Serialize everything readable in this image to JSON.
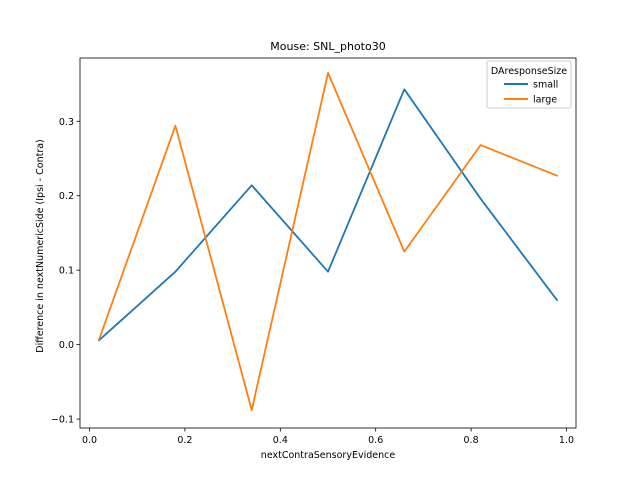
{
  "chart_data": {
    "type": "line",
    "title": "Mouse: SNL_photo30",
    "xlabel": "nextContraSensoryEvidence",
    "ylabel": "Difference in nextNumericSide (Ipsi - Contra)",
    "xlim": [
      -0.02,
      1.02
    ],
    "ylim": [
      -0.112,
      0.385
    ],
    "xticks": [
      0.0,
      0.2,
      0.4,
      0.6,
      0.8,
      1.0
    ],
    "xtick_labels": [
      "0.0",
      "0.2",
      "0.4",
      "0.6",
      "0.8",
      "1.0"
    ],
    "yticks": [
      -0.1,
      0.0,
      0.1,
      0.2,
      0.3
    ],
    "ytick_labels": [
      "−0.1",
      "0.0",
      "0.1",
      "0.2",
      "0.3"
    ],
    "grid": false,
    "legend": {
      "title": "DAresponseSize",
      "placement": "top-right"
    },
    "x": [
      0.02,
      0.18,
      0.34,
      0.5,
      0.66,
      0.82,
      0.98
    ],
    "series": [
      {
        "name": "small",
        "color": "#1f77b4",
        "values": [
          0.006,
          0.098,
          0.214,
          0.098,
          0.343,
          0.196,
          0.06
        ]
      },
      {
        "name": "large",
        "color": "#ff7f0e",
        "values": [
          0.007,
          0.294,
          -0.088,
          0.365,
          0.125,
          0.268,
          0.227
        ]
      }
    ]
  }
}
